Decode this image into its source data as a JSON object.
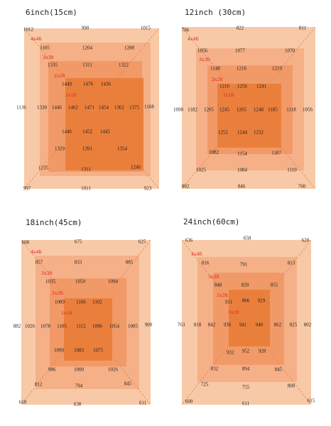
{
  "colors": {
    "layer_4x4": "#f8c9a6",
    "layer_3x3": "#f5b088",
    "layer_2x2": "#f19a67",
    "layer_1x1": "#ea7f3c",
    "zone_label": "#e0201c"
  },
  "panels": [
    {
      "title": "6inch(15cm)",
      "zones": [
        "4x4ft",
        "3x3ft",
        "2x2ft",
        "1x1ft"
      ],
      "values": [
        "1012",
        "990",
        "1015",
        "1105",
        "1204",
        "1288",
        "1335",
        "1311",
        "1322",
        "1449",
        "1476",
        "1436",
        "1136",
        "1330",
        "1446",
        "1462",
        "1471",
        "1454",
        "1362",
        "1375",
        "1168",
        "1446",
        "1452",
        "1445",
        "1329",
        "1391",
        "1354",
        "1235",
        "1311",
        "1246",
        "997",
        "1011",
        "923"
      ]
    },
    {
      "title": "12inch (30cm)",
      "zones": [
        "4x4ft",
        "3x3ft",
        "2x2ft",
        "1x1ft"
      ],
      "values": [
        "796",
        "822",
        "811",
        "1056",
        "1077",
        "1070",
        "1148",
        "1216",
        "1219",
        "1216",
        "1256",
        "1241",
        "1098",
        "1182",
        "1205",
        "1245",
        "1265",
        "1248",
        "1185",
        "1118",
        "1056",
        "1252",
        "1244",
        "1232",
        "1082",
        "1154",
        "1187",
        "1025",
        "1084",
        "1110",
        "802",
        "846",
        "760"
      ]
    },
    {
      "title": "18inch(45cm)",
      "zones": [
        "4x4ft",
        "3x3ft",
        "2x2ft",
        "1x1ft"
      ],
      "values": [
        "600",
        "675",
        "625",
        "857",
        "833",
        "885",
        "1035",
        "1050",
        "1094",
        "1089",
        "1106",
        "1102",
        "882",
        "1026",
        "1078",
        "1105",
        "1112",
        "1096",
        "1054",
        "1005",
        "900",
        "1099",
        "1083",
        "1075",
        "986",
        "1000",
        "1026",
        "812",
        "794",
        "845",
        "618",
        "638",
        "611"
      ]
    },
    {
      "title": "24inch(60cm)",
      "zones": [
        "4x4ft",
        "3x3ft",
        "2x2ft",
        "1x1ft"
      ],
      "values": [
        "636",
        "658",
        "620",
        "816",
        "791",
        "813",
        "848",
        "820",
        "855",
        "911",
        "866",
        "929",
        "763",
        "818",
        "842",
        "936",
        "941",
        "940",
        "862",
        "825",
        "802",
        "932",
        "952",
        "928",
        "832",
        "894",
        "845",
        "725",
        "755",
        "800",
        "600",
        "611",
        "615"
      ]
    }
  ]
}
